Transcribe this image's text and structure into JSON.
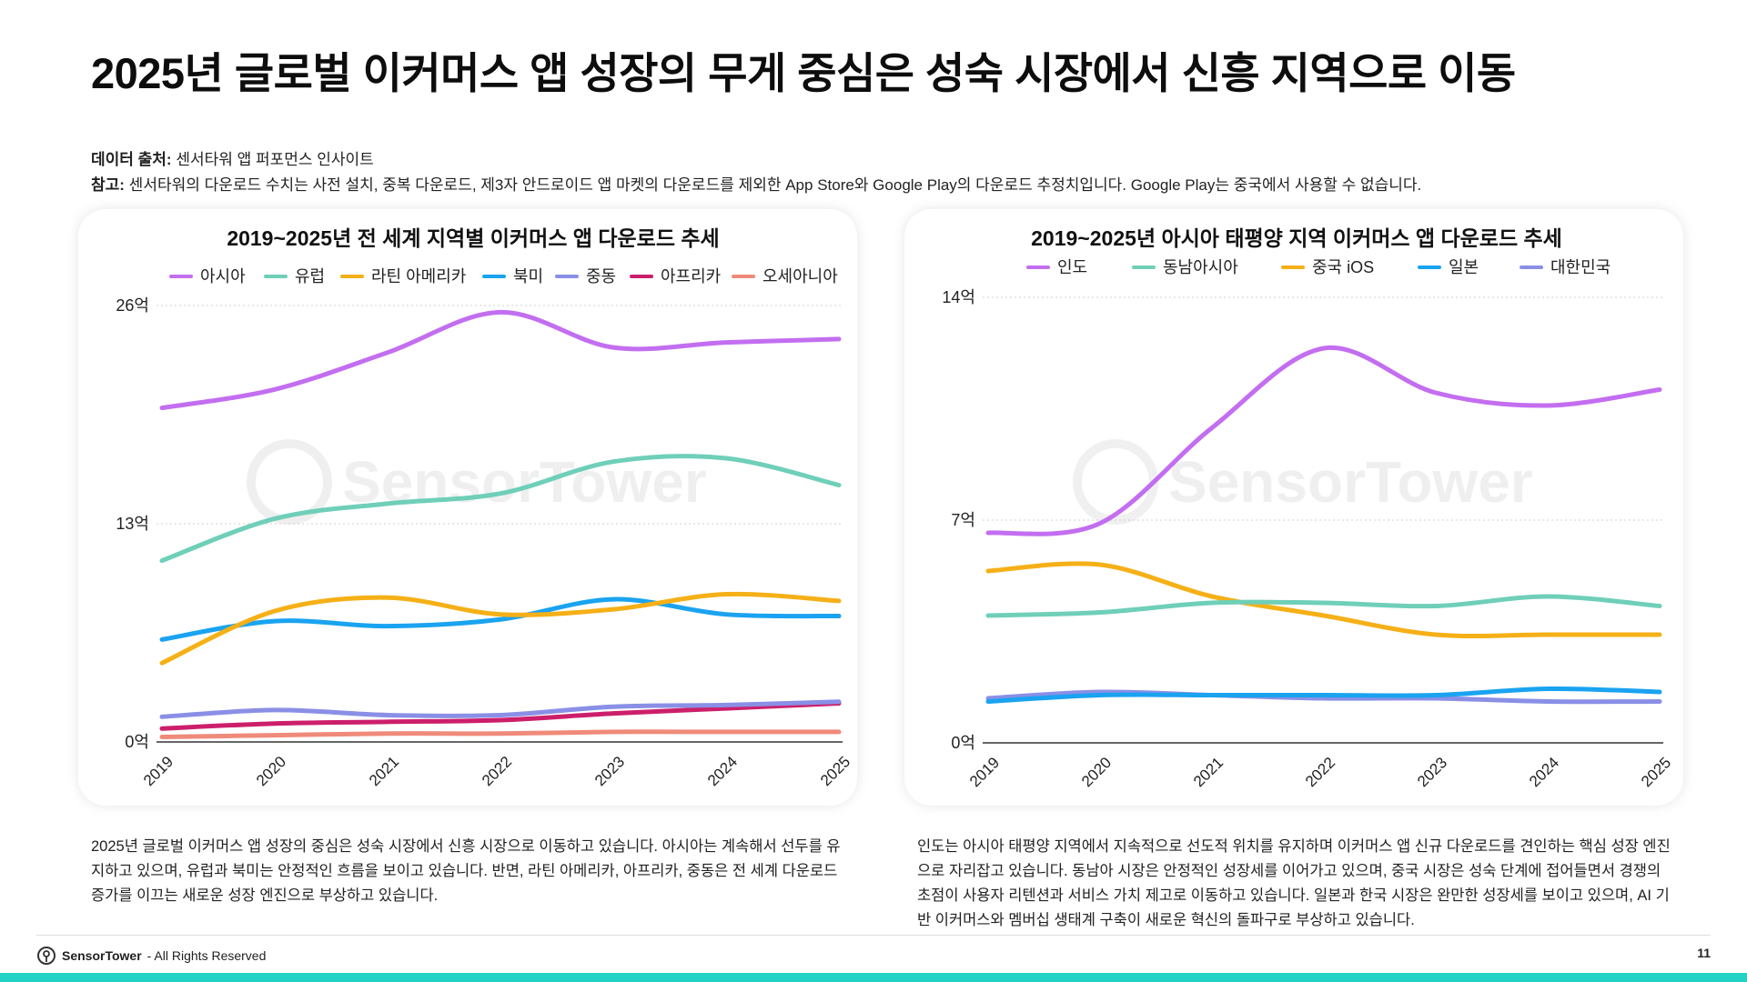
{
  "page": {
    "title": "2025년 글로벌 이커머스 앱 성장의 무게 중심은 성숙 시장에서 신흥 지역으로 이동",
    "source_label": "데이터 출처:",
    "source_text": " 센서타워 앱 퍼포먼스 인사이트",
    "note_label": "참고:",
    "note_text": " 센서타워의 다운로드 수치는 사전 설치, 중복 다운로드, 제3자 안드로이드 앱 마켓의 다운로드를 제외한 App Store와 Google Play의 다운로드 추정치입니다. Google Play는 중국에서 사용할 수 없습니다.",
    "desc_left": "2025년 글로벌 이커머스 앱 성장의 중심은 성숙 시장에서 신흥 시장으로 이동하고 있습니다. 아시아는 계속해서 선두를 유지하고 있으며, 유럽과 북미는 안정적인 흐름을 보이고 있습니다. 반면, 라틴 아메리카, 아프리카, 중동은 전 세계 다운로드 증가를 이끄는 새로운 성장 엔진으로 부상하고 있습니다.",
    "desc_right": "인도는 아시아 태평양 지역에서 지속적으로 선도적 위치를 유지하며 이커머스 앱 신규 다운로드를 견인하는 핵심 성장 엔진으로 자리잡고 있습니다. 동남아 시장은 안정적인 성장세를 이어가고 있으며, 중국 시장은 성숙 단계에 접어들면서 경쟁의 초점이 사용자 리텐션과 서비스 가치 제고로 이동하고 있습니다. 일본과 한국 시장은 완만한 성장세를 보이고 있으며, AI 기반 이커머스와 멤버십 생태계 구축이 새로운 혁신의 돌파구로 부상하고 있습니다.",
    "footer_brand": "SensorTower",
    "footer_text": " - All Rights Reserved",
    "page_number": "11",
    "watermark": "SensorTower",
    "accent_color": "#22d3c5"
  },
  "chart_data": [
    {
      "type": "line",
      "title": "2019~2025년 전 세계 지역별 이커머스 앱 다운로드 추세",
      "x": [
        "2019",
        "2020",
        "2021",
        "2022",
        "2023",
        "2024",
        "2025"
      ],
      "ylim": [
        0,
        26
      ],
      "yticks": [
        0,
        13,
        26
      ],
      "ytick_labels": [
        "0억",
        "13억",
        "26억"
      ],
      "legend": "top",
      "grid": true,
      "series": [
        {
          "name": "아시아",
          "color": "#c36ef0",
          "values": [
            19.9,
            21.0,
            23.2,
            25.6,
            23.5,
            23.8,
            24.0
          ]
        },
        {
          "name": "유럽",
          "color": "#6fcfb8",
          "values": [
            10.8,
            13.3,
            14.2,
            14.8,
            16.7,
            16.9,
            15.3
          ]
        },
        {
          "name": "라틴 아메리카",
          "color": "#f5b017",
          "values": [
            4.7,
            7.8,
            8.6,
            7.6,
            7.9,
            8.8,
            8.4
          ]
        },
        {
          "name": "북미",
          "color": "#1aa3f0",
          "values": [
            6.1,
            7.2,
            6.9,
            7.3,
            8.5,
            7.6,
            7.5
          ]
        },
        {
          "name": "중동",
          "color": "#8a8fe6",
          "values": [
            1.5,
            1.9,
            1.6,
            1.6,
            2.1,
            2.2,
            2.4
          ]
        },
        {
          "name": "아프리카",
          "color": "#cc1f6b",
          "values": [
            0.8,
            1.1,
            1.2,
            1.3,
            1.7,
            2.0,
            2.3
          ]
        },
        {
          "name": "오세아니아",
          "color": "#f08a7a",
          "values": [
            0.3,
            0.4,
            0.5,
            0.5,
            0.6,
            0.6,
            0.6
          ]
        }
      ]
    },
    {
      "type": "line",
      "title": "2019~2025년 아시아 태평양 지역 이커머스 앱 다운로드 추세",
      "x": [
        "2019",
        "2020",
        "2021",
        "2022",
        "2023",
        "2024",
        "2025"
      ],
      "ylim": [
        0,
        14
      ],
      "yticks": [
        0,
        7,
        14
      ],
      "ytick_labels": [
        "0억",
        "7억",
        "14억"
      ],
      "legend": "top",
      "grid": true,
      "series": [
        {
          "name": "인도",
          "color": "#c36ef0",
          "values": [
            6.6,
            6.9,
            9.9,
            12.4,
            11.0,
            10.6,
            11.1
          ]
        },
        {
          "name": "동남아시아",
          "color": "#6fcfb8",
          "values": [
            4.0,
            4.1,
            4.4,
            4.4,
            4.3,
            4.6,
            4.3
          ]
        },
        {
          "name": "중국 iOS",
          "color": "#f5b017",
          "values": [
            5.4,
            5.6,
            4.6,
            4.0,
            3.4,
            3.4,
            3.4
          ]
        },
        {
          "name": "일본",
          "color": "#1aa3f0",
          "values": [
            1.3,
            1.5,
            1.5,
            1.5,
            1.5,
            1.7,
            1.6
          ]
        },
        {
          "name": "대한민국",
          "color": "#8a8fe6",
          "values": [
            1.4,
            1.6,
            1.5,
            1.4,
            1.4,
            1.3,
            1.3
          ]
        }
      ]
    }
  ]
}
